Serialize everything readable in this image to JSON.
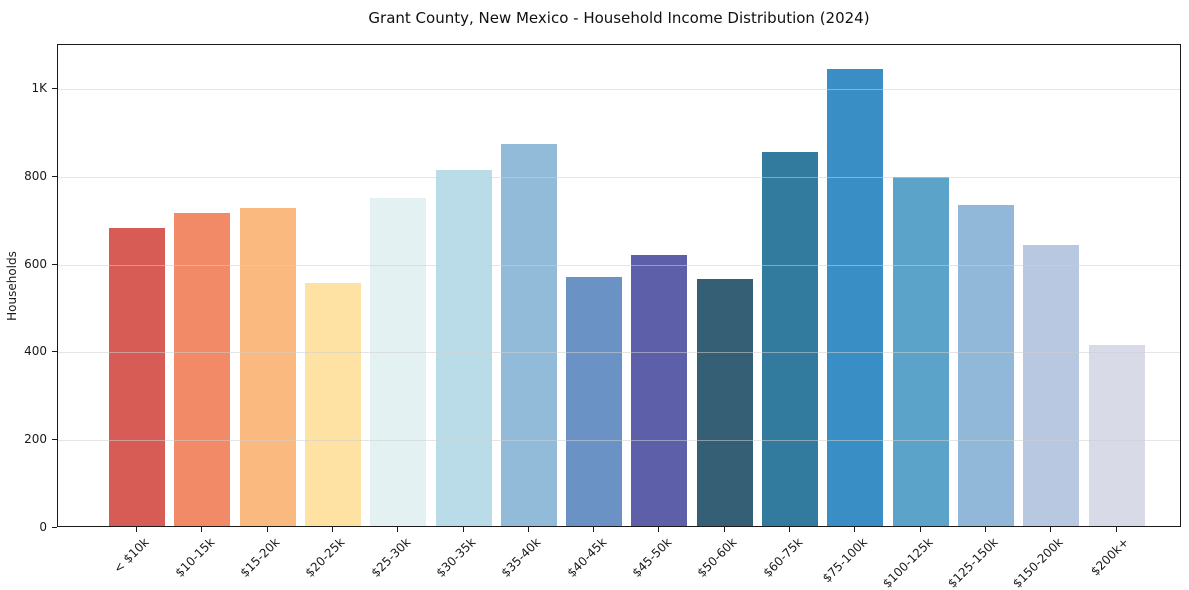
{
  "chart_data": {
    "type": "bar",
    "title": "Grant County, New Mexico - Household Income Distribution (2024)",
    "xlabel": "",
    "ylabel": "Households",
    "categories": [
      "< $10k",
      "$10-15k",
      "$15-20k",
      "$20-25k",
      "$25-30k",
      "$30-35k",
      "$35-40k",
      "$40-45k",
      "$45-50k",
      "$50-60k",
      "$60-75k",
      "$75-100k",
      "$100-125k",
      "$125-150k",
      "$150-200k",
      "$200k+"
    ],
    "values": [
      678,
      712,
      725,
      554,
      746,
      811,
      870,
      568,
      617,
      562,
      852,
      1041,
      795,
      731,
      640,
      412
    ],
    "bar_colors": [
      "#d65c55",
      "#f28a68",
      "#fab97e",
      "#fde2a4",
      "#e4f1f2",
      "#badce8",
      "#91bbd9",
      "#6a92c5",
      "#5d5fa9",
      "#355f75",
      "#337a9f",
      "#398fc5",
      "#5ba3c9",
      "#91b8d8",
      "#b8c8e1",
      "#d8dae8"
    ],
    "ylim": [
      0,
      1100
    ],
    "yticks": [
      {
        "value": 0,
        "label": "0"
      },
      {
        "value": 200,
        "label": "200"
      },
      {
        "value": 400,
        "label": "400"
      },
      {
        "value": 600,
        "label": "600"
      },
      {
        "value": 800,
        "label": "800"
      },
      {
        "value": 1000,
        "label": "1K"
      }
    ],
    "grid": "horizontal gridlines at y ticks, light gray, drawn over bars",
    "legend": "none",
    "frame": "full black box around plot area",
    "x_tick_label_rotation_deg": 45
  }
}
